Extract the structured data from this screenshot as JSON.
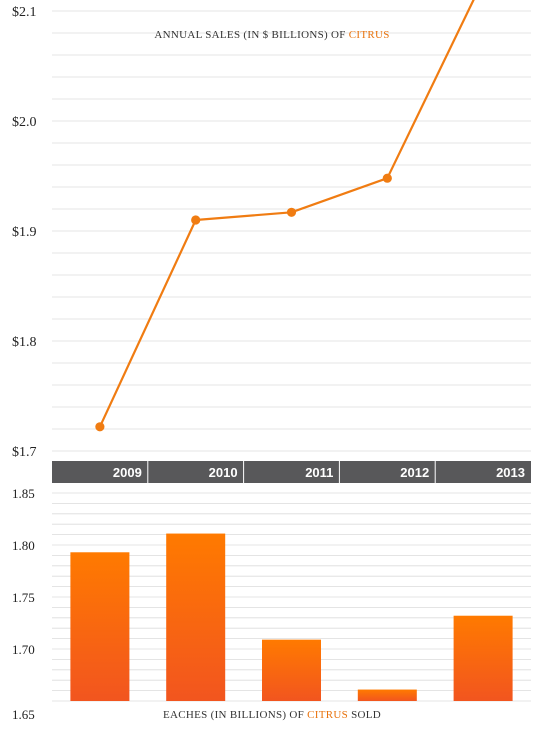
{
  "colors": {
    "accent": "#f07c12",
    "bar_top": "#ff7a00",
    "bar_bottom": "#f2551f",
    "year_band": "#58585a",
    "grid": "#dcdcdc",
    "highlight_text": "#e8720c"
  },
  "chart_data": [
    {
      "type": "line",
      "title_parts": [
        "ANNUAL SALES (IN $ BILLIONS) OF ",
        "CITRUS"
      ],
      "title_highlight": "CITRUS",
      "x": [
        "2009",
        "2010",
        "2011",
        "2012",
        "2013"
      ],
      "series": [
        {
          "values": [
            1.722,
            1.91,
            1.917,
            1.948,
            2.128
          ]
        }
      ],
      "ylim": [
        1.7,
        2.1
      ],
      "yticks": [
        {
          "value": 2.1,
          "label": "$2.1"
        },
        {
          "value": 2.0,
          "label": "$2.0"
        },
        {
          "value": 1.9,
          "label": "$1.9"
        },
        {
          "value": 1.8,
          "label": "$1.8"
        },
        {
          "value": 1.7,
          "label": "$1.7"
        }
      ],
      "grid": true
    },
    {
      "type": "bar",
      "title_parts": [
        "EACHES (IN BILLIONS) OF ",
        "CITRUS",
        " SOLD"
      ],
      "title_highlight": "CITRUS",
      "categories": [
        "2009",
        "2010",
        "2011",
        "2012",
        "2013"
      ],
      "values": [
        1.793,
        1.811,
        1.709,
        1.661,
        1.732
      ],
      "ylim": [
        1.65,
        1.85
      ],
      "yticks": [
        {
          "value": 1.85,
          "label": "1.85"
        },
        {
          "value": 1.8,
          "label": "1.80"
        },
        {
          "value": 1.75,
          "label": "1.75"
        },
        {
          "value": 1.7,
          "label": "1.70"
        },
        {
          "value": 1.65,
          "label": "1.65"
        }
      ],
      "grid": true
    }
  ]
}
